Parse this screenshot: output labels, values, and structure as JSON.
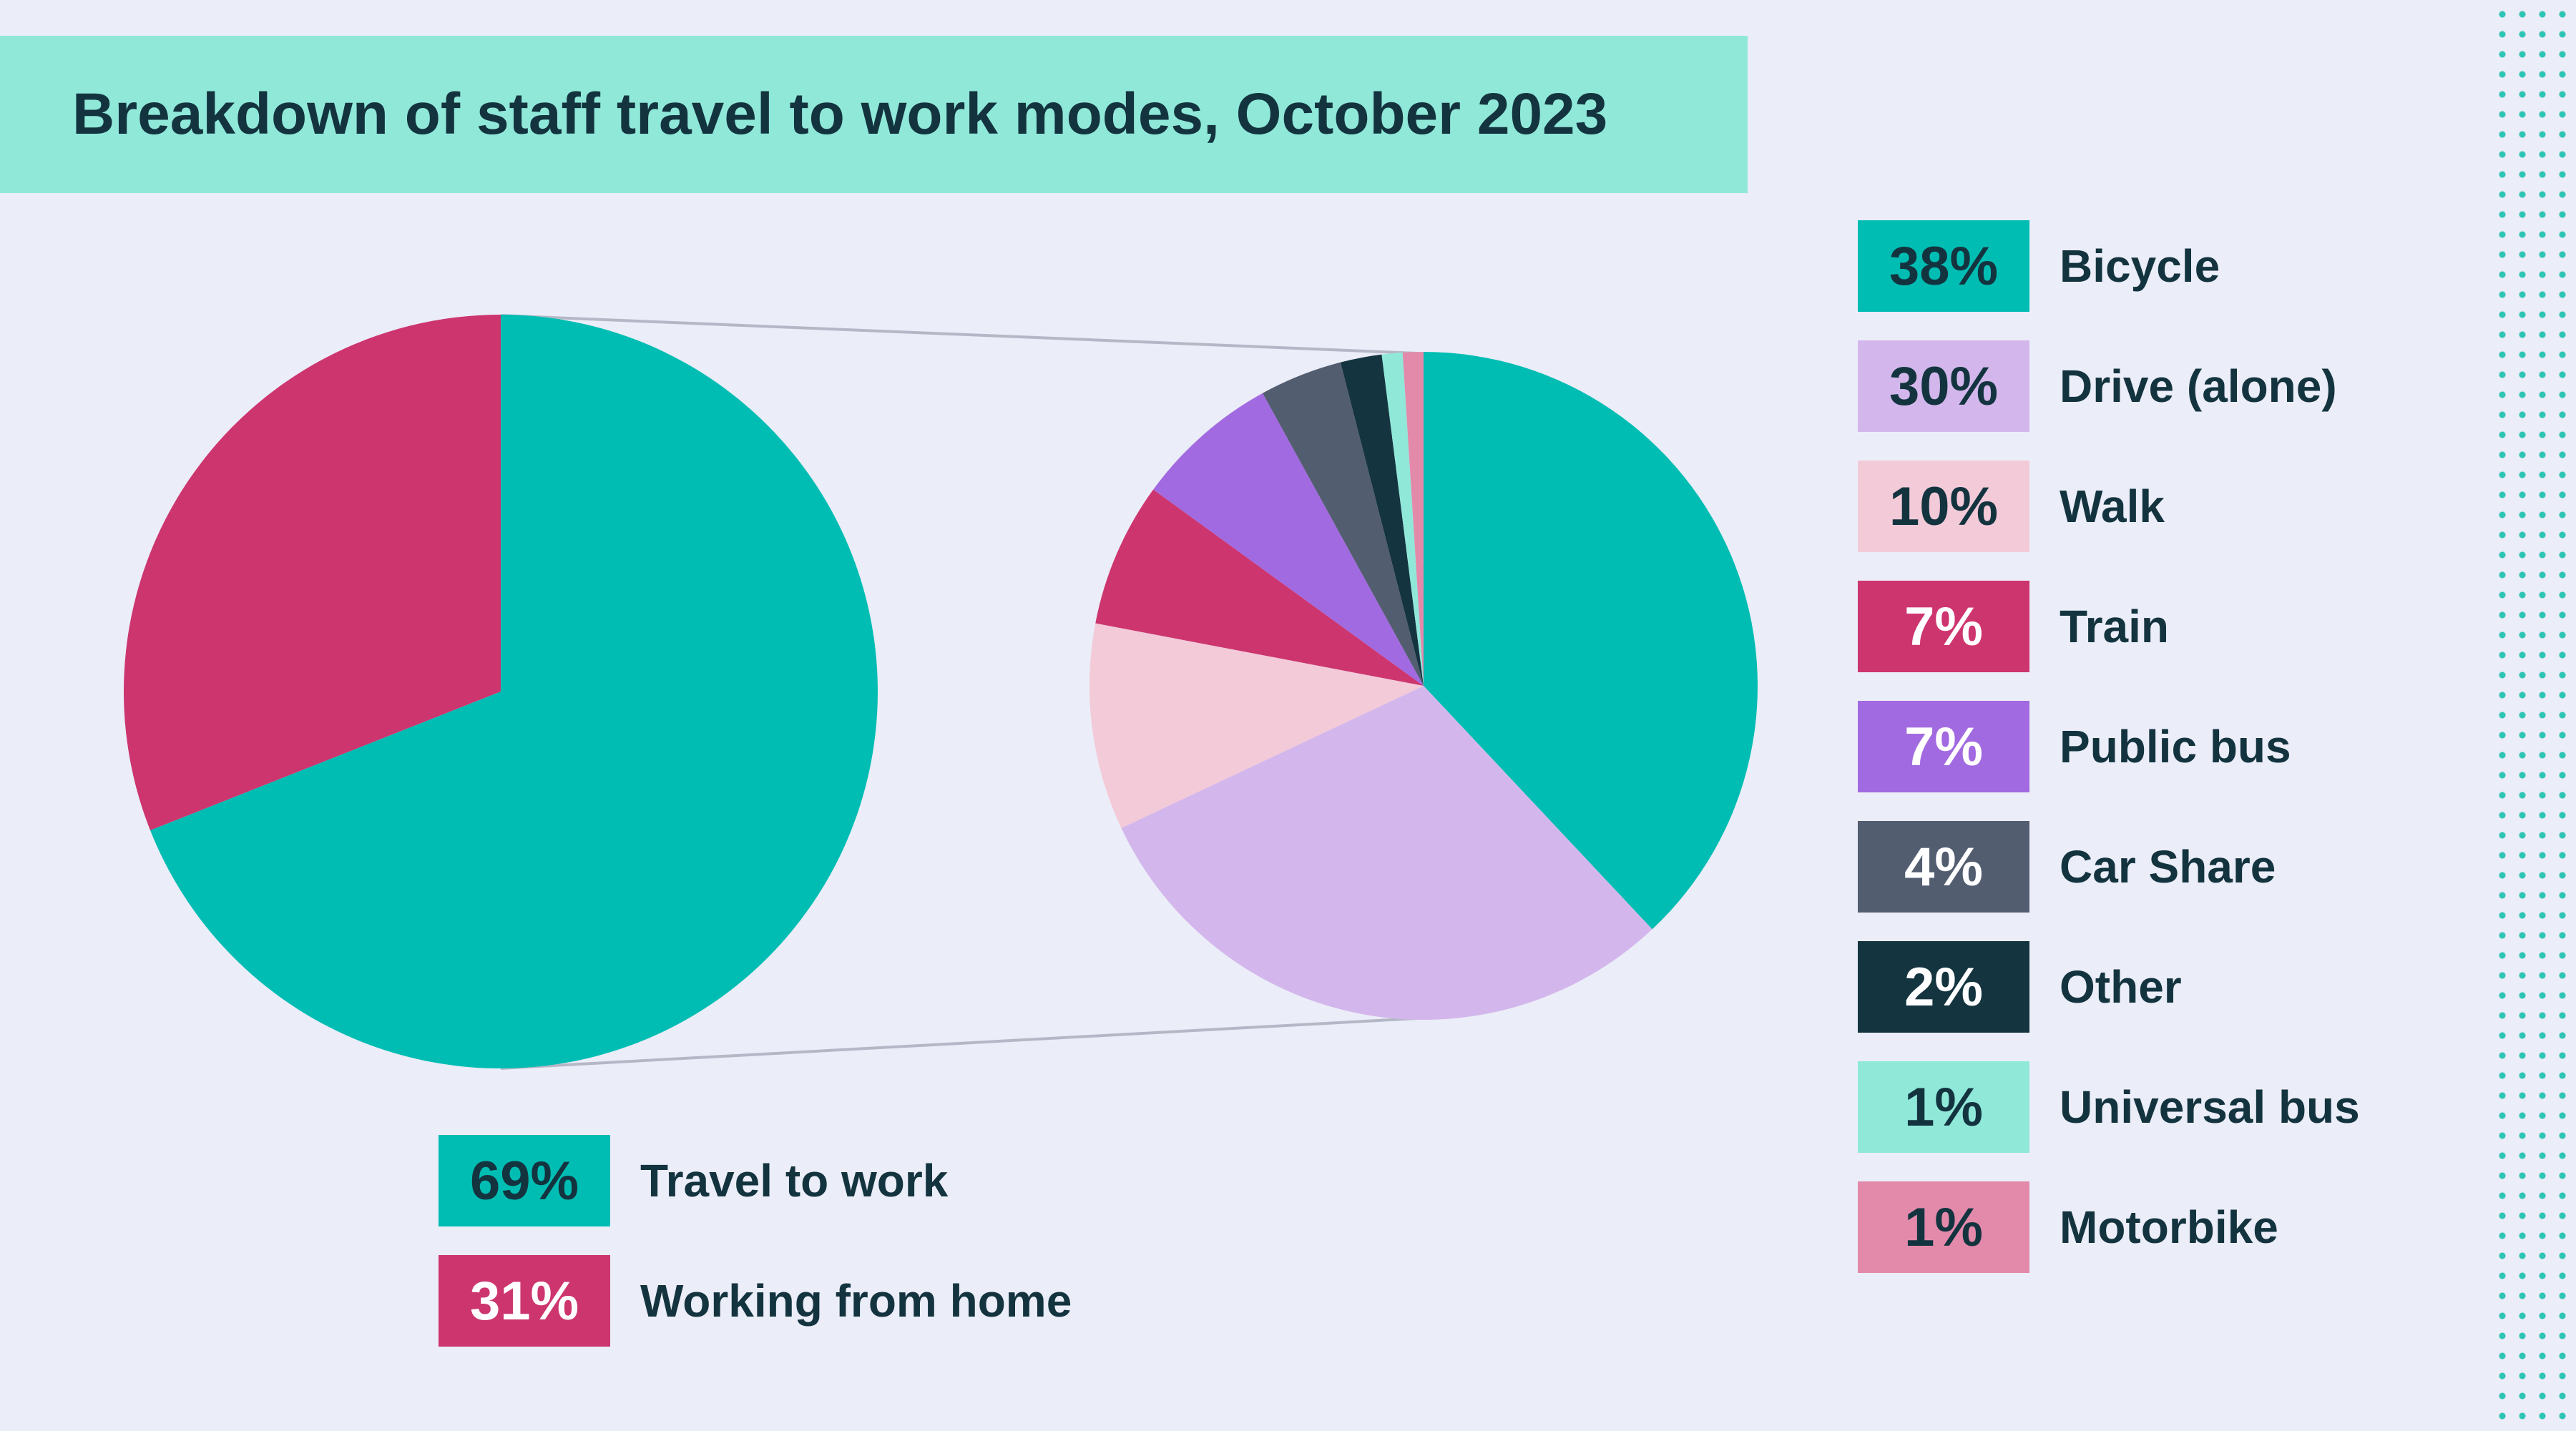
{
  "chart_data": [
    {
      "type": "pie",
      "title": "Breakdown of staff travel to work modes, October 2023",
      "categories": [
        "Travel to work",
        "Working from home"
      ],
      "values": [
        69,
        31
      ],
      "labels": [
        "69%",
        "31%"
      ],
      "colors": [
        "#00bdb3",
        "#cd356f"
      ],
      "label_colors": [
        "#13343f",
        "#ffffff"
      ],
      "legend_placement": "bottom"
    },
    {
      "type": "pie",
      "categories": [
        "Bicycle",
        "Drive (alone)",
        "Walk",
        "Train",
        "Public bus",
        "Car Share",
        "Other",
        "Universal bus",
        "Motorbike"
      ],
      "values": [
        38,
        30,
        10,
        7,
        7,
        4,
        2,
        1,
        1
      ],
      "labels": [
        "38%",
        "30%",
        "10%",
        "7%",
        "7%",
        "4%",
        "2%",
        "1%",
        "1%"
      ],
      "colors": [
        "#00bdb3",
        "#d3b7ec",
        "#f3cad8",
        "#cd356f",
        "#a26ae0",
        "#525d70",
        "#14343f",
        "#90e8d9",
        "#e38aab"
      ],
      "label_colors": [
        "#13343f",
        "#13343f",
        "#13343f",
        "#ffffff",
        "#ffffff",
        "#ffffff",
        "#ffffff",
        "#13343f",
        "#13343f"
      ],
      "legend_placement": "right"
    }
  ]
}
